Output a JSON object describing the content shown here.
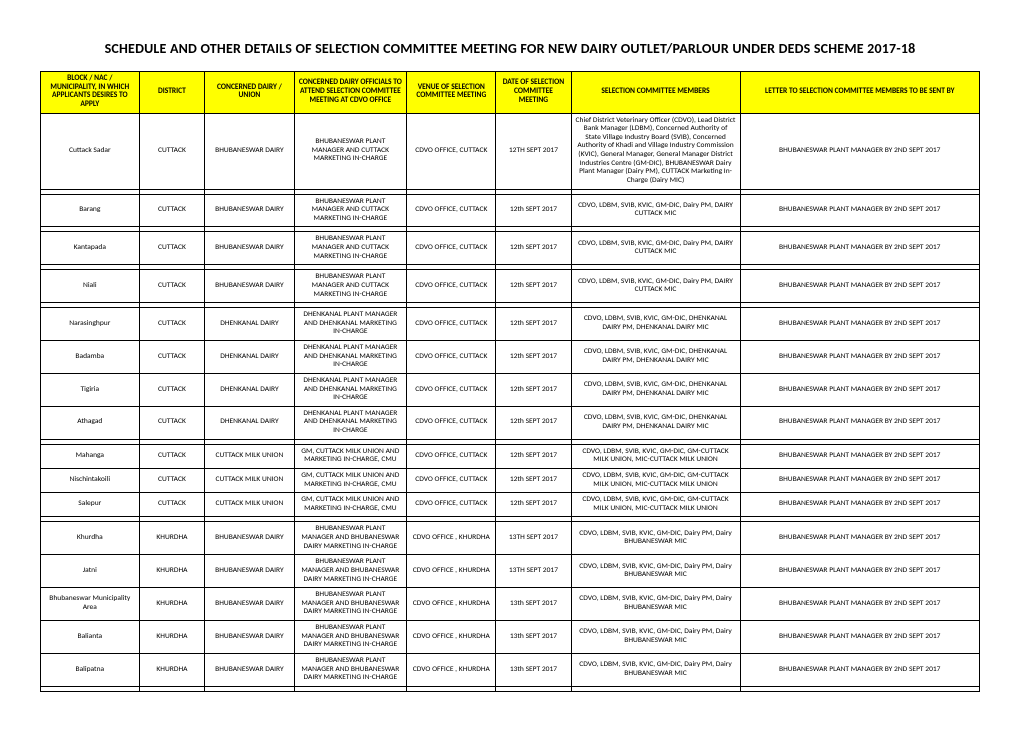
{
  "title": "SCHEDULE AND OTHER DETAILS OF SELECTION COMMITTEE MEETING FOR NEW DAIRY OUTLET/PARLOUR UNDER DEDS SCHEME 2017-18",
  "columns": [
    "BLOCK / NAC / MUNICIPALITY, IN WHICH APPLICANTS DESIRES TO APPLY",
    "DISTRICT",
    "CONCERNED DAIRY / UNION",
    "CONCERNED DAIRY OFFICIALS TO ATTEND SELECTION COMMITTEE MEETING AT CDVO OFFICE",
    "VENUE OF SELECTION COMMITTEE MEETING",
    "DATE OF SELECTION COMMITTEE MEETING",
    "SELECTION COMMITTEE MEMBERS",
    "LETTER TO SELECTION COMMITTEE MEMBERS TO BE SENT BY"
  ],
  "rows": [
    {
      "cells": [
        "Cuttack Sadar",
        "CUTTACK",
        "BHUBANESWAR DAIRY",
        "BHUBANESWAR PLANT MANAGER AND CUTTACK MARKETING IN-CHARGE",
        "CDVO OFFICE, CUTTACK",
        "12TH SEPT 2017",
        "Chief District Veterinary Officer (CDVO), Lead District Bank Manager (LDBM), Concerned Authority of State Village Industry Board (SVIB), Concerned Authority of Khadi and Village Industry Commission (KVIC), General Manager, General Manager District Industries Centre (GM-DIC), BHUBANESWAR Dairy Plant Manager (Dairy PM), CUTTACK Marketing In- Charge (Dairy MIC)",
        "BHUBANESWAR PLANT MANAGER BY 2ND SEPT 2017"
      ]
    },
    {
      "spacer": true
    },
    {
      "cells": [
        "Barang",
        "CUTTACK",
        "BHUBANESWAR DAIRY",
        "BHUBANESWAR PLANT MANAGER AND CUTTACK MARKETING IN-CHARGE",
        "CDVO OFFICE, CUTTACK",
        "12th SEPT 2017",
        "CDVO, LDBM, SVIB, KVIC, GM-DIC, Dairy PM, DAIRY CUTTACK MIC",
        "BHUBANESWAR PLANT MANAGER BY 2ND SEPT 2017"
      ]
    },
    {
      "spacer": true
    },
    {
      "cells": [
        "Kantapada",
        "CUTTACK",
        "BHUBANESWAR DAIRY",
        "BHUBANESWAR PLANT MANAGER AND CUTTACK MARKETING IN-CHARGE",
        "CDVO OFFICE, CUTTACK",
        "12th SEPT 2017",
        "CDVO, LDBM, SVIB, KVIC, GM-DIC, Dairy PM, DAIRY CUTTACK MIC",
        "BHUBANESWAR PLANT MANAGER BY 2ND SEPT 2017"
      ]
    },
    {
      "spacer": true
    },
    {
      "cells": [
        "Niali",
        "CUTTACK",
        "BHUBANESWAR DAIRY",
        "BHUBANESWAR PLANT MANAGER AND CUTTACK MARKETING IN-CHARGE",
        "CDVO OFFICE, CUTTACK",
        "12th SEPT 2017",
        "CDVO, LDBM, SVIB, KVIC, GM-DIC, Dairy PM, DAIRY CUTTACK MIC",
        "BHUBANESWAR PLANT MANAGER BY 2ND SEPT 2017"
      ]
    },
    {
      "spacer": true
    },
    {
      "cells": [
        "Narasinghpur",
        "CUTTACK",
        "DHENKANAL DAIRY",
        "DHENKANAL PLANT MANAGER AND DHENKANAL MARKETING IN-CHARGE",
        "CDVO OFFICE, CUTTACK",
        "12th SEPT 2017",
        "CDVO, LDBM, SVIB, KVIC, GM-DIC, DHENKANAL DAIRY  PM, DHENKANAL DAIRY MIC",
        "BHUBANESWAR PLANT MANAGER BY 2ND SEPT 2017"
      ]
    },
    {
      "cells": [
        "Badamba",
        "CUTTACK",
        "DHENKANAL DAIRY",
        "DHENKANAL PLANT MANAGER AND DHENKANAL MARKETING IN-CHARGE",
        "CDVO OFFICE, CUTTACK",
        "12th SEPT 2017",
        "CDVO, LDBM, SVIB, KVIC, GM-DIC, DHENKANAL DAIRY  PM, DHENKANAL DAIRY MIC",
        "BHUBANESWAR PLANT MANAGER BY 2ND SEPT 2017"
      ]
    },
    {
      "cells": [
        "Tigiria",
        "CUTTACK",
        "DHENKANAL DAIRY",
        "DHENKANAL PLANT MANAGER AND DHENKANAL MARKETING IN-CHARGE",
        "CDVO OFFICE, CUTTACK",
        "12th SEPT 2017",
        "CDVO, LDBM, SVIB, KVIC, GM-DIC, DHENKANAL DAIRY  PM, DHENKANAL DAIRY MIC",
        "BHUBANESWAR PLANT MANAGER BY 2ND SEPT 2017"
      ]
    },
    {
      "cells": [
        "Athagad",
        "CUTTACK",
        "DHENKANAL DAIRY",
        "DHENKANAL PLANT MANAGER AND DHENKANAL MARKETING IN-CHARGE",
        "CDVO OFFICE, CUTTACK",
        "12th SEPT 2017",
        "CDVO, LDBM, SVIB, KVIC, GM-DIC, DHENKANAL DAIRY  PM, DHENKANAL DAIRY MIC",
        "BHUBANESWAR PLANT MANAGER BY 2ND SEPT 2017"
      ]
    },
    {
      "spacer": true
    },
    {
      "cells": [
        "Mahanga",
        "CUTTACK",
        "CUTTACK MILK UNION",
        "GM, CUTTACK MILK UNION AND MARKETING IN-CHARGE, CMU",
        "CDVO OFFICE, CUTTACK",
        "12th SEPT 2017",
        "CDVO, LDBM, SVIB, KVIC, GM-DIC, GM-CUTTACK MILK UNION, MIC-CUTTACK MILK UNION",
        "BHUBANESWAR PLANT MANAGER BY 2ND SEPT 2017"
      ]
    },
    {
      "cells": [
        "Nischintakoili",
        "CUTTACK",
        "CUTTACK MILK UNION",
        "GM, CUTTACK MILK UNION AND MARKETING IN-CHARGE, CMU",
        "CDVO OFFICE, CUTTACK",
        "12th SEPT 2017",
        "CDVO, LDBM, SVIB, KVIC, GM-DIC, GM-CUTTACK MILK UNION, MIC-CUTTACK MILK UNION",
        "BHUBANESWAR PLANT MANAGER BY 2ND SEPT 2017"
      ]
    },
    {
      "cells": [
        "Salepur",
        "CUTTACK",
        "CUTTACK MILK UNION",
        "GM, CUTTACK MILK UNION AND MARKETING IN-CHARGE, CMU",
        "CDVO OFFICE, CUTTACK",
        "12th SEPT 2017",
        "CDVO, LDBM, SVIB, KVIC, GM-DIC, GM-CUTTACK MILK UNION, MIC-CUTTACK MILK UNION",
        "BHUBANESWAR PLANT MANAGER BY 2ND SEPT 2017"
      ]
    },
    {
      "spacer": true
    },
    {
      "cells": [
        "Khurdha",
        "KHURDHA",
        "BHUBANESWAR DAIRY",
        "BHUBANESWAR PLANT MANAGER AND BHUBANESWAR DAIRY MARKETING IN-CHARGE",
        "CDVO OFFICE , KHURDHA",
        "13TH SEPT 2017",
        "CDVO, LDBM, SVIB, KVIC, GM-DIC, Dairy PM, Dairy BHUBANESWAR MIC",
        "BHUBANESWAR PLANT MANAGER BY 2ND SEPT 2017"
      ]
    },
    {
      "cells": [
        "Jatni",
        "KHURDHA",
        "BHUBANESWAR DAIRY",
        "BHUBANESWAR PLANT MANAGER AND BHUBANESWAR DAIRY MARKETING IN-CHARGE",
        "CDVO OFFICE , KHURDHA",
        "13TH SEPT 2017",
        "CDVO, LDBM, SVIB, KVIC, GM-DIC, Dairy PM, Dairy BHUBANESWAR MIC",
        "BHUBANESWAR PLANT MANAGER BY 2ND SEPT 2017"
      ]
    },
    {
      "cells": [
        "Bhubaneswar Municipality Area",
        "KHURDHA",
        "BHUBANESWAR DAIRY",
        "BHUBANESWAR PLANT MANAGER AND BHUBANESWAR DAIRY MARKETING IN-CHARGE",
        "CDVO OFFICE , KHURDHA",
        "13th SEPT 2017",
        "CDVO, LDBM, SVIB, KVIC, GM-DIC, Dairy PM, Dairy BHUBANESWAR MIC",
        "BHUBANESWAR PLANT MANAGER BY 2ND SEPT 2017"
      ]
    },
    {
      "cells": [
        "Balianta",
        "KHURDHA",
        "BHUBANESWAR DAIRY",
        "BHUBANESWAR PLANT MANAGER AND BHUBANESWAR DAIRY MARKETING IN-CHARGE",
        "CDVO OFFICE , KHURDHA",
        "13th SEPT 2017",
        "CDVO, LDBM, SVIB, KVIC, GM-DIC, Dairy PM, Dairy BHUBANESWAR MIC",
        "BHUBANESWAR PLANT MANAGER BY 2ND SEPT 2017"
      ]
    },
    {
      "cells": [
        "Balipatna",
        "KHURDHA",
        "BHUBANESWAR DAIRY",
        "BHUBANESWAR PLANT MANAGER AND BHUBANESWAR DAIRY MARKETING IN-CHARGE",
        "CDVO OFFICE , KHURDHA",
        "13th SEPT 2017",
        "CDVO, LDBM, SVIB, KVIC, GM-DIC, Dairy PM, Dairy BHUBANESWAR MIC",
        "BHUBANESWAR PLANT MANAGER BY 2ND SEPT 2017"
      ]
    },
    {
      "spacer": true
    }
  ],
  "style": {
    "header_bg": "#ffff00",
    "border_color": "#000000",
    "page_bg": "#ffffff",
    "title_fontsize": 14,
    "cell_fontsize": 7.5,
    "font_family": "Calibri, Arial, sans-serif"
  }
}
